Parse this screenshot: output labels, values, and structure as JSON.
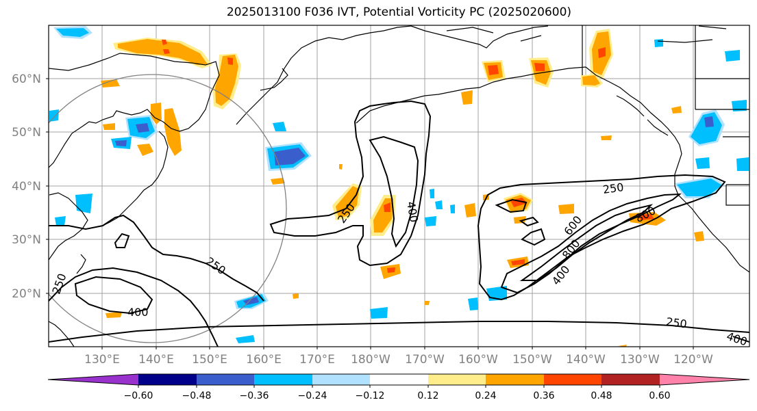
{
  "title": "2025013100 F036 IVT, Potential Vorticity PC (2025020600)",
  "map": {
    "lat_labels": [
      "60°N",
      "50°N",
      "40°N",
      "30°N",
      "20°N"
    ],
    "lon_labels": [
      "130°E",
      "140°E",
      "150°E",
      "160°E",
      "170°E",
      "180°W",
      "170°W",
      "160°W",
      "150°W",
      "140°W",
      "130°W",
      "120°W"
    ],
    "contour_labels": [
      "250",
      "400",
      "250",
      "400",
      "250",
      "800",
      "600",
      "800",
      "400",
      "250",
      "400",
      "250"
    ],
    "colors": {
      "coast": "#000000",
      "contour": "#000000",
      "grid": "#a0a0a0",
      "circle": "#808080"
    }
  },
  "colorbar": {
    "colors": [
      "#9932cc",
      "#00008b",
      "#3a5fcd",
      "#00bfff",
      "#b0e2ff",
      "#ffffff",
      "#ffec8b",
      "#ffa500",
      "#ff4500",
      "#b22222",
      "#ff82ab"
    ],
    "tick_labels": [
      "−0.60",
      "−0.48",
      "−0.36",
      "−0.24",
      "−0.12",
      "0.12",
      "0.24",
      "0.36",
      "0.48",
      "0.60"
    ]
  }
}
